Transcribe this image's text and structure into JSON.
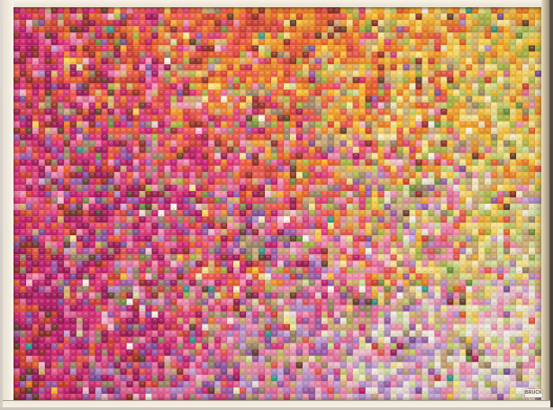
{
  "artwork": {
    "description": "Framed mosaic of studded 1x1 toy-brick tiles forming a dithered four-corner gradient: red-magenta and orange at top left, yellow at top right, deep magenta at bottom left, pastel pink and cream at bottom right",
    "signature": "BRUCK",
    "grid": {
      "cols": 84,
      "rows": 62
    },
    "seed": 1337,
    "anchors": [
      [
        "#cf2f5e",
        "#ef7c1e",
        "#f8c930"
      ],
      [
        "#c12166",
        "#d05a5e",
        "#eccc74"
      ],
      [
        "#b81e5e",
        "#cf85ae",
        "#efd9d4"
      ]
    ],
    "palette": [
      "#9d1454",
      "#c2186b",
      "#d6246f",
      "#e03a7a",
      "#8f2a21",
      "#d23b2c",
      "#ef5347",
      "#e95d24",
      "#f07c1f",
      "#f69a24",
      "#f9a825",
      "#fbc231",
      "#fdd455",
      "#fde98c",
      "#f8efc6",
      "#f6ecd9",
      "#faf6ec",
      "#efd9d8",
      "#f6bfd1",
      "#f48fb1",
      "#e86a9e",
      "#cfa87c",
      "#d9b36a",
      "#9a8464",
      "#a9b640",
      "#c3d06a",
      "#d4e49c",
      "#6d8f3a",
      "#2a9d8f",
      "#5f3b28",
      "#b28ccb",
      "#c9a6dc",
      "#9b59a8",
      "#7e4d9a"
    ],
    "accents": [
      "#b28ccb",
      "#9b59a8",
      "#7e4d9a",
      "#2a9d8f",
      "#5f3b28",
      "#a9b640",
      "#d4e49c",
      "#cfa87c",
      "#d9b36a",
      "#faf6ec",
      "#ef5347",
      "#fbc231",
      "#f48fb1"
    ],
    "accent_probability": 0.035,
    "pale_probability": 0.1,
    "dark_probability": 0.05,
    "jitter": 62,
    "block_noise": 26
  },
  "scene": {
    "wall_color": "#d3cdc6",
    "frame_color": "#f2ecdf",
    "frame_shadow_color": "#93836c",
    "wall_shadow_color": "#403b35"
  }
}
